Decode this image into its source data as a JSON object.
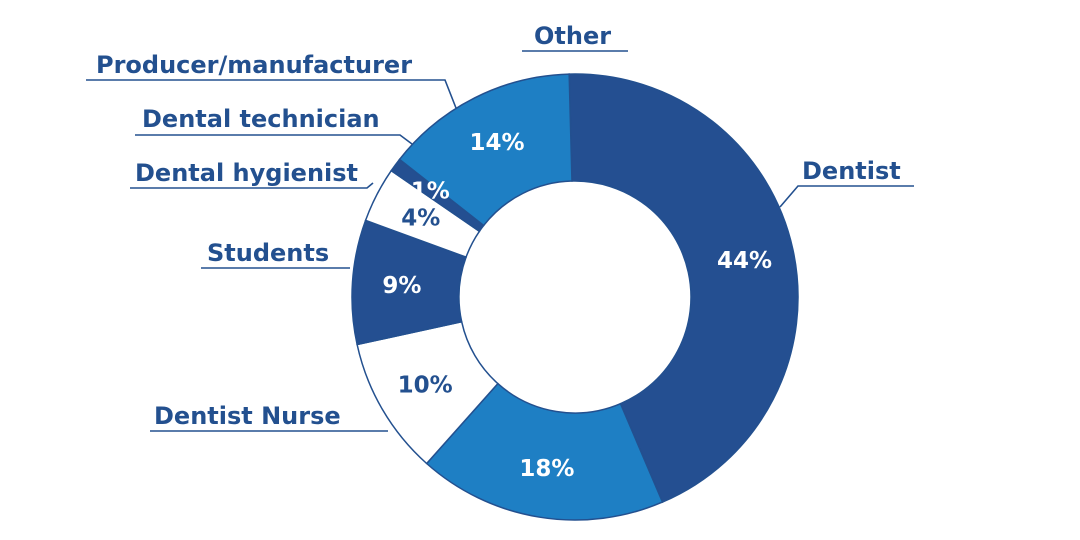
{
  "chart_data": {
    "type": "pie",
    "variant": "donut",
    "title": "",
    "legend": "none",
    "slices": [
      {
        "label": "Dentist",
        "value": 44,
        "value_label": "44%",
        "color": "#244f91",
        "text_color": "#ffffff"
      },
      {
        "label": "Dentist Nurse",
        "value": 18,
        "value_label": "18%",
        "color": "#1e7fc4",
        "text_color": "#ffffff"
      },
      {
        "label": "Students",
        "value": 10,
        "value_label": "10%",
        "color": "#ffffff",
        "text_color": "#23508f"
      },
      {
        "label": "Dental hygienist",
        "value": 9,
        "value_label": "9%",
        "color": "#244f91",
        "text_color": "#ffffff"
      },
      {
        "label": "Dental technician",
        "value": 4,
        "value_label": "4%",
        "color": "#ffffff",
        "text_color": "#23508f"
      },
      {
        "label": "Producer/manufacturer",
        "value": 1,
        "value_label": "1%",
        "color": "#244f91",
        "text_color": "#ffffff"
      },
      {
        "label": "Other",
        "value": 14,
        "value_label": "14%",
        "color": "#1e7fc4",
        "text_color": "#ffffff"
      }
    ]
  }
}
